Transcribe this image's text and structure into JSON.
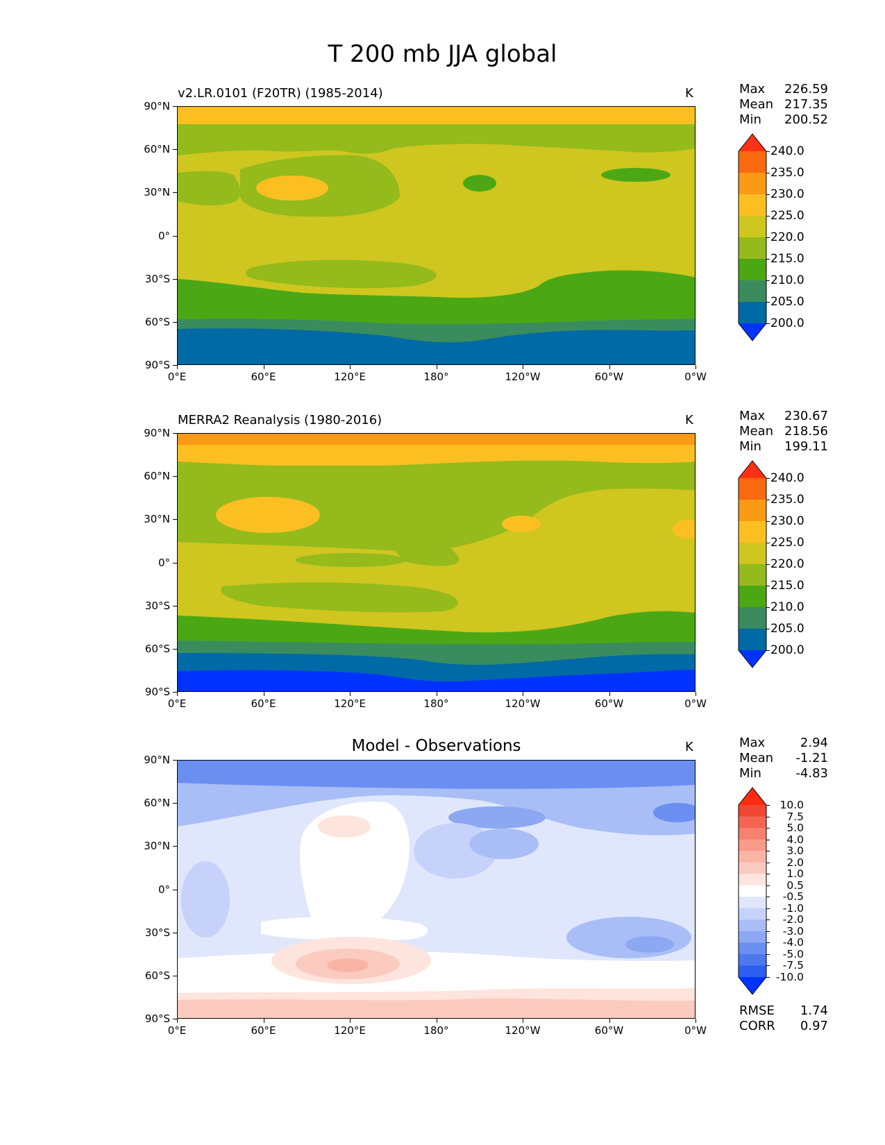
{
  "figure": {
    "title": "T 200 mb JJA global"
  },
  "panels": [
    {
      "title_left": "v2.LR.0101 (F20TR) (1985-2014)",
      "title_center": "",
      "units": "K",
      "stats": {
        "max_label": "Max",
        "max": "226.59",
        "mean_label": "Mean",
        "mean": "217.35",
        "min_label": "Min",
        "min": "200.52"
      },
      "colorbar": [
        "240.0",
        "235.0",
        "230.0",
        "225.0",
        "220.0",
        "215.0",
        "210.0",
        "205.0",
        "200.0"
      ]
    },
    {
      "title_left": "MERRA2 Reanalysis (1980-2016)",
      "title_center": "",
      "units": "K",
      "stats": {
        "max_label": "Max",
        "max": "230.67",
        "mean_label": "Mean",
        "mean": "218.56",
        "min_label": "Min",
        "min": "199.11"
      },
      "colorbar": [
        "240.0",
        "235.0",
        "230.0",
        "225.0",
        "220.0",
        "215.0",
        "210.0",
        "205.0",
        "200.0"
      ]
    },
    {
      "title_left": "",
      "title_center": "Model - Observations",
      "units": "K",
      "stats": {
        "max_label": "Max",
        "max": "2.94",
        "mean_label": "Mean",
        "mean": "-1.21",
        "min_label": "Min",
        "min": "-4.83"
      },
      "colorbar": [
        "10.0",
        "7.5",
        "5.0",
        "4.0",
        "3.0",
        "2.0",
        "1.0",
        "0.5",
        "-0.5",
        "-1.0",
        "-2.0",
        "-3.0",
        "-4.0",
        "-5.0",
        "-7.5",
        "-10.0"
      ],
      "metrics": {
        "rmse_label": "RMSE",
        "rmse": "1.74",
        "corr_label": "CORR",
        "corr": "0.97"
      }
    }
  ],
  "axes": {
    "yticks": [
      "90°N",
      "60°N",
      "30°N",
      "0°",
      "30°S",
      "60°S",
      "90°S"
    ],
    "xticks": [
      "0°E",
      "60°E",
      "120°E",
      "180°",
      "120°W",
      "60°W",
      "0°W"
    ]
  },
  "colors": {
    "abs": [
      "#0033ff",
      "#006aa6",
      "#3a8c5e",
      "#4ba814",
      "#94ba1c",
      "#cfc620",
      "#fbbf22",
      "#fb9a14",
      "#fb6a0e",
      "#ff3018"
    ],
    "diff": [
      "#0033ff",
      "#2e5df2",
      "#4d78ee",
      "#6a8ff0",
      "#8ca8f2",
      "#a9bef6",
      "#c6d2fa",
      "#e0e7fc",
      "#ffffff",
      "#fde4dc",
      "#fbcbc0",
      "#fab4a6",
      "#f89b8a",
      "#f7806e",
      "#f56352",
      "#f24634",
      "#ff2a10"
    ]
  },
  "chart_data": [
    {
      "type": "heatmap",
      "title": "v2.LR.0101 (F20TR) (1985-2014)",
      "variable": "T 200 mb JJA",
      "units": "K",
      "xlim": [
        0,
        360
      ],
      "ylim": [
        -90,
        90
      ],
      "levels": [
        195,
        200,
        205,
        210,
        215,
        220,
        225,
        230,
        235,
        240
      ],
      "stats": {
        "max": 226.59,
        "mean": 217.35,
        "min": 200.52
      }
    },
    {
      "type": "heatmap",
      "title": "MERRA2 Reanalysis (1980-2016)",
      "variable": "T 200 mb JJA",
      "units": "K",
      "xlim": [
        0,
        360
      ],
      "ylim": [
        -90,
        90
      ],
      "levels": [
        195,
        200,
        205,
        210,
        215,
        220,
        225,
        230,
        235,
        240
      ],
      "stats": {
        "max": 230.67,
        "mean": 218.56,
        "min": 199.11
      }
    },
    {
      "type": "heatmap",
      "title": "Model - Observations",
      "units": "K",
      "xlim": [
        0,
        360
      ],
      "ylim": [
        -90,
        90
      ],
      "levels": [
        -10,
        -7.5,
        -5,
        -4,
        -3,
        -2,
        -1,
        -0.5,
        0.5,
        1,
        2,
        3,
        4,
        5,
        7.5,
        10
      ],
      "stats": {
        "max": 2.94,
        "mean": -1.21,
        "min": -4.83
      },
      "metrics": {
        "rmse": 1.74,
        "corr": 0.97
      }
    }
  ]
}
